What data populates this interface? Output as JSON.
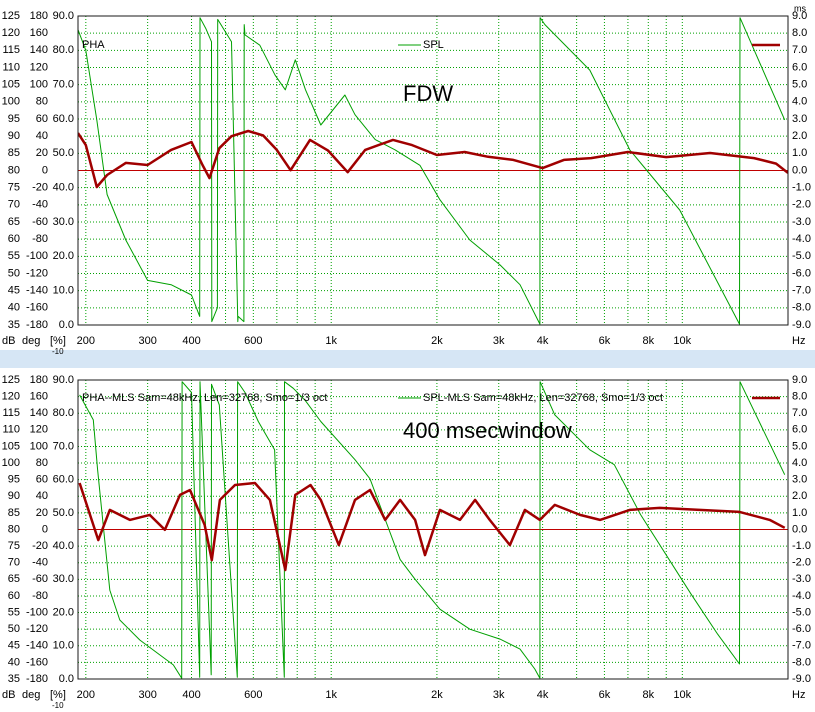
{
  "chart_data": [
    {
      "type": "line",
      "x_scale": "log",
      "annotation": "FDW",
      "xlim": [
        190,
        20000
      ],
      "xticks": [
        200,
        300,
        400,
        600,
        {
          "value": 1000,
          "label": "1k"
        },
        {
          "value": 2000,
          "label": "2k"
        },
        {
          "value": 3000,
          "label": "3k"
        },
        {
          "value": 4000,
          "label": "4k"
        },
        {
          "value": 6000,
          "label": "6k"
        },
        {
          "value": 8000,
          "label": "8k"
        },
        {
          "value": 10000,
          "label": "10k"
        }
      ],
      "xminor": [
        500,
        700,
        800,
        900,
        5000,
        7000,
        9000,
        20000
      ],
      "x_unit": "Hz",
      "ylim": [
        35,
        125
      ],
      "yticks": [
        35,
        40,
        45,
        50,
        55,
        60,
        65,
        70,
        75,
        80,
        85,
        90,
        95,
        100,
        105,
        110,
        115,
        120,
        125
      ],
      "y_label": "dB",
      "deg_lim": [
        -180,
        180
      ],
      "deg_ticks": [
        -180,
        -160,
        -140,
        -120,
        -100,
        -80,
        -60,
        -40,
        -20,
        0,
        20,
        40,
        60,
        80,
        100,
        120,
        140,
        160,
        180
      ],
      "deg_label": "deg",
      "pct_lim": [
        0,
        90
      ],
      "pct_ticks": [
        {
          "value": 0,
          "label": "0.0"
        },
        {
          "value": 10,
          "label": "10.0"
        },
        {
          "value": 20,
          "label": "20.0"
        },
        {
          "value": 30,
          "label": "30.0"
        },
        {
          "value": 40,
          "label": "40.0"
        },
        {
          "value": 50,
          "label": "50.0"
        },
        {
          "value": 60,
          "label": "60.0"
        },
        {
          "value": 70,
          "label": "70.0"
        },
        {
          "value": 80,
          "label": "80.0"
        },
        {
          "value": 90,
          "label": "90.0"
        }
      ],
      "pct_label": "[%]",
      "pct_sub": "-10",
      "y2lim": [
        -9,
        9
      ],
      "y2ticks": [
        {
          "value": -9,
          "label": "-9.0"
        },
        {
          "value": -8,
          "label": "-8.0"
        },
        {
          "value": -7,
          "label": "-7.0"
        },
        {
          "value": -6,
          "label": "-6.0"
        },
        {
          "value": -5,
          "label": "-5.0"
        },
        {
          "value": -4,
          "label": "-4.0"
        },
        {
          "value": -3,
          "label": "-3.0"
        },
        {
          "value": -2,
          "label": "-2.0"
        },
        {
          "value": -1,
          "label": "-1.0"
        },
        {
          "value": 0,
          "label": "0.0"
        },
        {
          "value": 1,
          "label": "1.0"
        },
        {
          "value": 2,
          "label": "2.0"
        },
        {
          "value": 3,
          "label": "3.0"
        },
        {
          "value": 4,
          "label": "4.0"
        },
        {
          "value": 5,
          "label": "5.0"
        },
        {
          "value": 6,
          "label": "6.0"
        },
        {
          "value": 7,
          "label": "7.0"
        },
        {
          "value": 8,
          "label": "8.0"
        },
        {
          "value": 9,
          "label": "9.0"
        }
      ],
      "y2_label": "ms",
      "grid": true,
      "grid_color": "#00a000",
      "reference_line": {
        "axis": "y2",
        "value": 0,
        "color": "#c00000"
      },
      "series": [
        {
          "name": "PHA",
          "color": "#00a000",
          "axis": "deg",
          "width": 1,
          "x": [
            190,
            200,
            215,
            230,
            260,
            300,
            350,
            400,
            422,
            423,
            440,
            456,
            457,
            474,
            475,
            520,
            542,
            543,
            564,
            565,
            568,
            626,
            692,
            740,
            790,
            845,
            934,
            1094,
            1169,
            1334,
            1521,
            1789,
            2040,
            2482,
            3025,
            3449,
            3930,
            3935,
            4060,
            5453,
            7086,
            9832,
            14550,
            14600,
            19570
          ],
          "values": [
            164,
            140,
            59,
            -28,
            -81,
            -128,
            -133,
            -145,
            -170,
            178,
            165,
            150,
            -176,
            -160,
            176,
            150,
            -176,
            -170,
            -176,
            170,
            158,
            146,
            111,
            94,
            129,
            94,
            53,
            88,
            65,
            36,
            24,
            6,
            -34,
            -81,
            -110,
            -133,
            -179,
            178,
            170,
            117,
            24,
            -46,
            -179,
            178,
            59
          ]
        },
        {
          "name": "SPL",
          "color": "#a00000",
          "axis": "y",
          "width": 2.5,
          "x": [
            190,
            200,
            215,
            230,
            260,
            300,
            350,
            400,
            430,
            450,
            480,
            520,
            580,
            640,
            700,
            766,
            870,
            980,
            1114,
            1250,
            1500,
            1700,
            2000,
            2400,
            2800,
            3300,
            4000,
            4600,
            5500,
            7000,
            9000,
            12000,
            16000,
            18500,
            20000
          ],
          "values": [
            90.9,
            87.4,
            75.2,
            78.7,
            82.2,
            81.6,
            86.0,
            88.3,
            81.6,
            77.8,
            86.5,
            90.0,
            91.5,
            90.2,
            86.0,
            80.1,
            88.9,
            85.8,
            79.5,
            86.0,
            88.9,
            87.4,
            84.5,
            85.4,
            84.0,
            83.1,
            80.7,
            83.1,
            83.6,
            85.4,
            83.9,
            85.1,
            83.6,
            82.0,
            79.3
          ]
        }
      ]
    },
    {
      "type": "line",
      "x_scale": "log",
      "annotation": "400 msecwindow",
      "xlim": [
        190,
        20000
      ],
      "xticks": [
        200,
        300,
        400,
        600,
        {
          "value": 1000,
          "label": "1k"
        },
        {
          "value": 2000,
          "label": "2k"
        },
        {
          "value": 3000,
          "label": "3k"
        },
        {
          "value": 4000,
          "label": "4k"
        },
        {
          "value": 6000,
          "label": "6k"
        },
        {
          "value": 8000,
          "label": "8k"
        },
        {
          "value": 10000,
          "label": "10k"
        }
      ],
      "xminor": [
        500,
        700,
        800,
        900,
        5000,
        7000,
        9000,
        20000
      ],
      "x_unit": "Hz",
      "ylim": [
        35,
        125
      ],
      "yticks": [
        35,
        40,
        45,
        50,
        55,
        60,
        65,
        70,
        75,
        80,
        85,
        90,
        95,
        100,
        105,
        110,
        115,
        120,
        125
      ],
      "y_label": "dB",
      "deg_lim": [
        -180,
        180
      ],
      "deg_ticks": [
        -180,
        -160,
        -140,
        -120,
        -100,
        -80,
        -60,
        -40,
        -20,
        0,
        20,
        40,
        60,
        80,
        100,
        120,
        140,
        160,
        180
      ],
      "deg_label": "deg",
      "pct_lim": [
        0,
        90
      ],
      "pct_ticks": [
        {
          "value": 0,
          "label": "0.0"
        },
        {
          "value": 10,
          "label": "10.0"
        },
        {
          "value": 20,
          "label": "20.0"
        },
        {
          "value": 30,
          "label": "30.0"
        },
        {
          "value": 40,
          "label": "40.0"
        },
        {
          "value": 50,
          "label": "50.0"
        },
        {
          "value": 60,
          "label": "60.0"
        },
        {
          "value": 70,
          "label": "70.0"
        },
        {
          "value": 80,
          "label": "80.0"
        },
        {
          "value": 90,
          "label": "90.0"
        }
      ],
      "pct_label": "[%]",
      "pct_sub": "-10",
      "y2lim": [
        -9,
        9
      ],
      "y2ticks": [
        {
          "value": -9,
          "label": "-9.0"
        },
        {
          "value": -8,
          "label": "-8.0"
        },
        {
          "value": -7,
          "label": "-7.0"
        },
        {
          "value": -6,
          "label": "-6.0"
        },
        {
          "value": -5,
          "label": "-5.0"
        },
        {
          "value": -4,
          "label": "-4.0"
        },
        {
          "value": -3,
          "label": "-3.0"
        },
        {
          "value": -2,
          "label": "-2.0"
        },
        {
          "value": -1,
          "label": "-1.0"
        },
        {
          "value": 0,
          "label": "0.0"
        },
        {
          "value": 1,
          "label": "1.0"
        },
        {
          "value": 2,
          "label": "2.0"
        },
        {
          "value": 3,
          "label": "3.0"
        },
        {
          "value": 4,
          "label": "4.0"
        },
        {
          "value": 5,
          "label": "5.0"
        },
        {
          "value": 6,
          "label": "6.0"
        },
        {
          "value": 7,
          "label": "7.0"
        },
        {
          "value": 8,
          "label": "8.0"
        },
        {
          "value": 9,
          "label": "9.0"
        }
      ],
      "grid": true,
      "grid_color": "#00a000",
      "reference_line": {
        "axis": "y2",
        "value": 0,
        "color": "#c00000"
      },
      "series": [
        {
          "name": "PHA--MLS Sam=48kHz, Len=32768, Smo=1/3 oct",
          "color": "#00a000",
          "axis": "deg",
          "width": 1,
          "x": [
            192,
            210,
            216,
            234,
            250,
            285,
            325,
            355,
            375,
            376,
            400,
            422,
            423,
            455,
            456,
            480,
            540,
            541,
            568,
            620,
            690,
            735,
            736,
            780,
            845,
            934,
            1169,
            1290,
            1425,
            1571,
            1734,
            2040,
            2482,
            3025,
            3449,
            3800,
            3930,
            3935,
            4334,
            5453,
            6400,
            7600,
            10600,
            12600,
            14550,
            14600,
            19570
          ],
          "values": [
            162,
            132,
            72,
            -73,
            -109,
            -133,
            -151,
            -163,
            -179,
            178,
            165,
            -178,
            178,
            -175,
            175,
            150,
            -178,
            178,
            165,
            130,
            96,
            -178,
            178,
            170,
            155,
            130,
            84,
            61,
            12,
            -36,
            -60,
            -96,
            -120,
            -132,
            -144,
            -168,
            -179,
            178,
            138,
            96,
            78,
            18,
            -78,
            -126,
            -162,
            178,
            66
          ]
        },
        {
          "name": "SPL-MLS Sam=48kHz, Len=32768, Smo=1/3 oct",
          "color": "#a00000",
          "axis": "y",
          "width": 2.5,
          "x": [
            192,
            217,
            234,
            267,
            304,
            336,
            371,
            396,
            436,
            457,
            482,
            532,
            606,
            669,
            740,
            790,
            873,
            934,
            1051,
            1169,
            1290,
            1425,
            1571,
            1734,
            1850,
            2040,
            2327,
            2570,
            2827,
            3228,
            3561,
            3930,
            4334,
            5112,
            5829,
            7086,
            8620,
            11200,
            14550,
            17740,
            19570
          ],
          "values": [
            94.0,
            76.8,
            85.9,
            82.9,
            84.4,
            79.9,
            90.4,
            91.9,
            81.4,
            70.8,
            88.9,
            93.4,
            94.0,
            88.9,
            67.8,
            90.4,
            93.4,
            88.9,
            75.3,
            88.9,
            91.9,
            82.9,
            88.9,
            82.9,
            72.3,
            85.9,
            82.9,
            88.9,
            82.9,
            75.3,
            85.9,
            82.9,
            87.4,
            84.4,
            82.9,
            85.9,
            86.5,
            85.9,
            85.3,
            82.9,
            80.5
          ]
        }
      ]
    }
  ]
}
